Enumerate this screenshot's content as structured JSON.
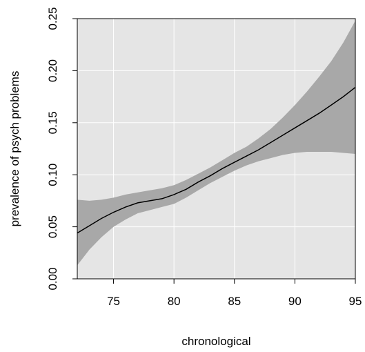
{
  "chart_data": {
    "type": "line",
    "title": "",
    "xlabel": "chronological",
    "ylabel": "prevalence of psych problems",
    "xlim": [
      72,
      95
    ],
    "ylim": [
      0,
      0.25
    ],
    "grid": true,
    "x_ticks": [
      75,
      80,
      85,
      90,
      95
    ],
    "x_tick_labels": [
      "75",
      "80",
      "85",
      "90",
      "95"
    ],
    "y_ticks": [
      0,
      0.05,
      0.1,
      0.15,
      0.2,
      0.25
    ],
    "y_tick_labels": [
      "0.00",
      "0.05",
      "0.10",
      "0.15",
      "0.20",
      "0.25"
    ],
    "colors": {
      "panel": "#e5e5e5",
      "grid": "#ffffff",
      "band": "#a8a8a8",
      "line": "#000000"
    },
    "series": [
      {
        "type": "line",
        "x": [
          72,
          73,
          74,
          75,
          76,
          77,
          78,
          79,
          80,
          81,
          82,
          83,
          84,
          85,
          86,
          87,
          88,
          89,
          90,
          91,
          92,
          93,
          94,
          95
        ],
        "y": [
          0.044,
          0.051,
          0.058,
          0.064,
          0.069,
          0.073,
          0.075,
          0.077,
          0.081,
          0.086,
          0.093,
          0.099,
          0.106,
          0.112,
          0.118,
          0.124,
          0.131,
          0.138,
          0.145,
          0.152,
          0.159,
          0.167,
          0.175,
          0.184
        ]
      },
      {
        "type": "confidence_band",
        "x": [
          72,
          73,
          74,
          75,
          76,
          77,
          78,
          79,
          80,
          81,
          82,
          83,
          84,
          85,
          86,
          87,
          88,
          89,
          90,
          91,
          92,
          93,
          94,
          95
        ],
        "lower": [
          0.013,
          0.028,
          0.04,
          0.05,
          0.057,
          0.063,
          0.066,
          0.069,
          0.072,
          0.078,
          0.085,
          0.092,
          0.098,
          0.104,
          0.109,
          0.113,
          0.116,
          0.119,
          0.121,
          0.122,
          0.122,
          0.122,
          0.121,
          0.12
        ],
        "upper": [
          0.076,
          0.075,
          0.076,
          0.078,
          0.081,
          0.083,
          0.085,
          0.087,
          0.09,
          0.095,
          0.101,
          0.107,
          0.114,
          0.121,
          0.127,
          0.135,
          0.144,
          0.155,
          0.167,
          0.18,
          0.194,
          0.209,
          0.227,
          0.248
        ]
      }
    ]
  }
}
